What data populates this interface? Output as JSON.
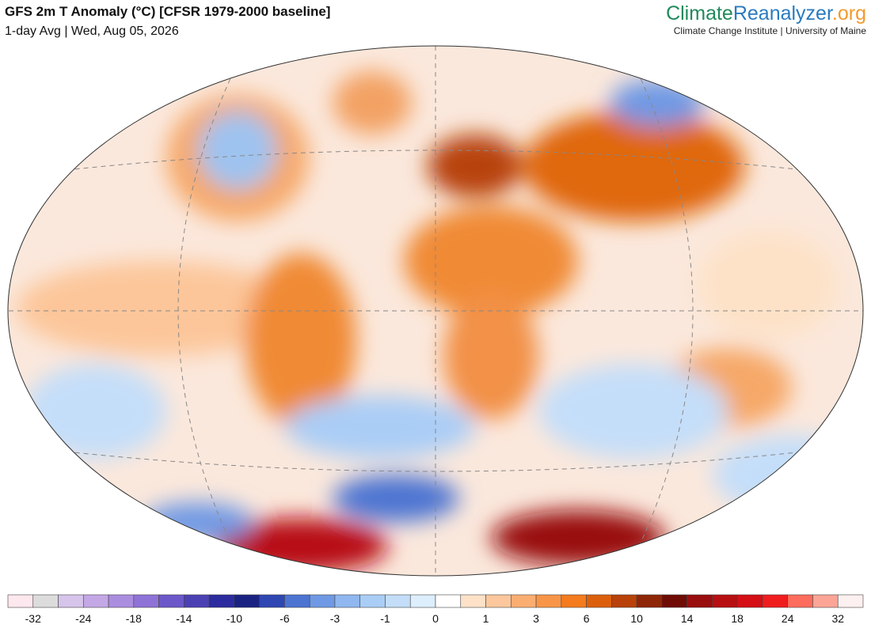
{
  "header": {
    "title": "GFS 2m T Anomaly (°C) [CFSR 1979-2000 baseline]",
    "subtitle": "1-day Avg | Wed, Aug 05, 2026"
  },
  "branding": {
    "logo_parts": [
      "Climate",
      "Reanalyzer",
      ".org"
    ],
    "tagline": "Climate Change Institute | University of Maine"
  },
  "legend": {
    "colors": [
      "#fde8ee",
      "#dcdcdc",
      "#d6c4ea",
      "#c4a8e6",
      "#ab8de0",
      "#8f72d6",
      "#6c58c8",
      "#4c41b3",
      "#2c2c9e",
      "#1b2382",
      "#2f47b2",
      "#4e74d2",
      "#6f99e4",
      "#90b7ef",
      "#aacdf6",
      "#c4def9",
      "#ddeefc",
      "#ffffff",
      "#fde2c8",
      "#fcc79c",
      "#fbae72",
      "#f99548",
      "#f47b1e",
      "#dc600c",
      "#b8420a",
      "#8e2608",
      "#700c06",
      "#990e0e",
      "#b80f12",
      "#d40f15",
      "#f01d1f",
      "#fd6c5c",
      "#fca597",
      "#fdf0f0"
    ],
    "ticks": [
      -32,
      -24,
      -18,
      -14,
      -10,
      -6,
      -3,
      -1,
      0,
      1,
      3,
      6,
      10,
      14,
      18,
      24,
      32
    ]
  }
}
